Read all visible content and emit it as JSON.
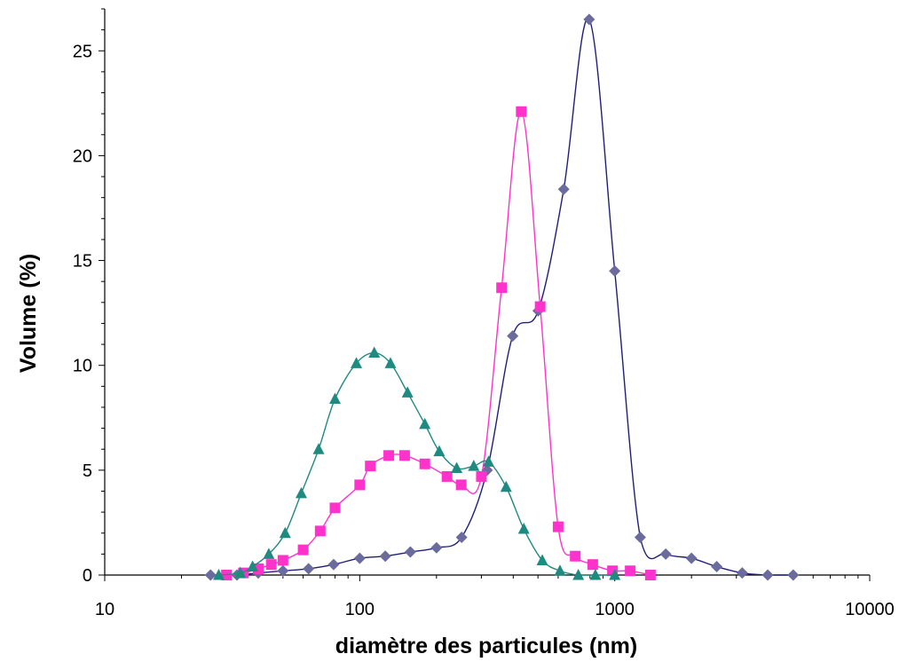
{
  "chart_data": {
    "type": "scatter",
    "title": "",
    "xlabel": "diamètre des particules (nm)",
    "ylabel": "Volume (%)",
    "xscale": "log",
    "xlim": [
      10,
      10000
    ],
    "ylim": [
      0,
      27
    ],
    "x_ticks": [
      10,
      100,
      1000,
      10000
    ],
    "y_ticks": [
      0,
      5,
      10,
      15,
      20,
      25
    ],
    "grid": false,
    "legend": "none",
    "series": [
      {
        "color": "#6b6b9e",
        "line_color": "#1f1f7a",
        "marker": "diamond",
        "x": [
          26,
          33,
          40,
          50,
          63,
          79,
          100,
          126,
          158,
          200,
          251,
          316,
          398,
          501,
          631,
          794,
          1000,
          1259,
          1585,
          2000,
          2512,
          3162,
          3981,
          5012
        ],
        "y": [
          0,
          0,
          0.1,
          0.2,
          0.3,
          0.5,
          0.8,
          0.9,
          1.1,
          1.3,
          1.8,
          5.0,
          11.4,
          12.6,
          18.4,
          26.5,
          14.5,
          1.8,
          1.0,
          0.8,
          0.4,
          0.1,
          0,
          0
        ]
      },
      {
        "color": "#ff33cc",
        "line_color": "#ff33cc",
        "marker": "square",
        "x": [
          30,
          35,
          40,
          45,
          50,
          60,
          70,
          80,
          100,
          110,
          130,
          150,
          180,
          220,
          250,
          300,
          360,
          430,
          510,
          600,
          700,
          820,
          980,
          1150,
          1380
        ],
        "y": [
          0,
          0.1,
          0.3,
          0.5,
          0.7,
          1.2,
          2.1,
          3.2,
          4.3,
          5.2,
          5.7,
          5.7,
          5.3,
          4.7,
          4.3,
          4.7,
          13.7,
          22.1,
          12.8,
          2.3,
          0.9,
          0.5,
          0.2,
          0.2,
          0
        ]
      },
      {
        "color": "#1f8a80",
        "line_color": "#1f8a80",
        "marker": "triangle",
        "x": [
          28,
          34,
          38,
          44,
          51,
          59,
          69,
          80,
          97,
          114,
          132,
          154,
          180,
          205,
          240,
          280,
          320,
          375,
          440,
          520,
          610,
          720,
          840,
          1000
        ],
        "y": [
          0,
          0.1,
          0.4,
          1.0,
          2.0,
          3.9,
          6.0,
          8.4,
          10.1,
          10.6,
          10.1,
          8.7,
          7.2,
          5.9,
          5.1,
          5.2,
          5.4,
          4.2,
          2.2,
          0.7,
          0.2,
          0,
          0,
          0
        ]
      }
    ]
  }
}
